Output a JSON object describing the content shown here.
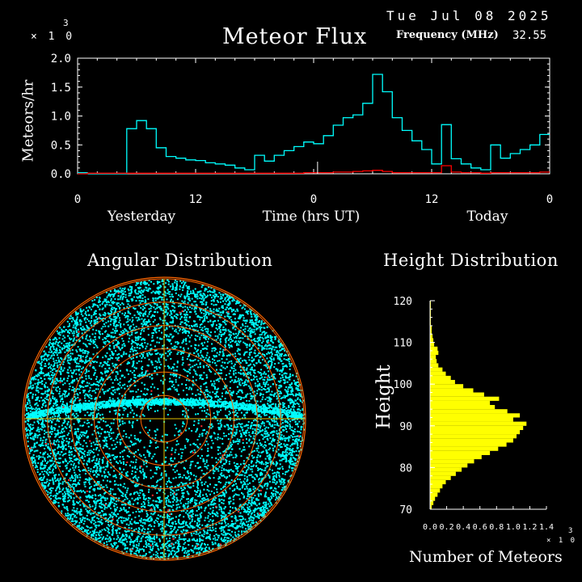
{
  "header": {
    "date": "Tue Jul 08 2025",
    "title": "Meteor Flux",
    "frequency_label": "Frequency (MHz)",
    "frequency_value": "32.55",
    "scale_prefix": "× 1 0",
    "scale_exponent": "3"
  },
  "colors": {
    "background": "#000000",
    "flux_line": "#00ffff",
    "flux_secondary": "#ff0000",
    "angular_points": "#00ffff",
    "angular_rings": "#ff6600",
    "angular_grid": "#e0c000",
    "height_bars": "#ffff00"
  },
  "chart_data": [
    {
      "type": "line",
      "title": "Meteor Flux",
      "ylabel": "Meteors/hr",
      "ylim": [
        0,
        2.0
      ],
      "y_scale_exponent": "3",
      "yticks": [
        "0.0",
        "0.5",
        "1.0",
        "1.5",
        "2.0"
      ],
      "xlim": [
        0,
        48
      ],
      "xticks": [
        "0",
        "12",
        "0",
        "12",
        "0"
      ],
      "xtick_positions": [
        0,
        12,
        24,
        36,
        48
      ],
      "period_labels": [
        "Yesterday",
        "Time (hrs UT)",
        "Today"
      ],
      "series": [
        {
          "style": "step",
          "x": [
            0,
            1,
            2,
            3,
            4,
            5,
            6,
            7,
            8,
            9,
            10,
            11,
            12,
            13,
            14,
            15,
            16,
            17,
            18,
            19,
            20,
            21,
            22,
            23,
            24,
            25,
            26,
            27,
            28,
            29,
            30,
            31,
            32,
            33,
            34,
            35,
            36,
            37,
            38,
            39,
            40,
            41,
            42,
            43,
            44,
            45,
            46,
            47
          ],
          "values": [
            0.02,
            0.0,
            0.0,
            0.0,
            0.0,
            0.78,
            0.92,
            0.78,
            0.45,
            0.3,
            0.27,
            0.24,
            0.23,
            0.19,
            0.17,
            0.15,
            0.1,
            0.07,
            0.32,
            0.22,
            0.32,
            0.4,
            0.47,
            0.55,
            0.52,
            0.66,
            0.84,
            0.97,
            1.02,
            1.22,
            1.72,
            1.42,
            0.97,
            0.75,
            0.57,
            0.42,
            0.17,
            0.85,
            0.26,
            0.17,
            0.1,
            0.07,
            0.5,
            0.27,
            0.35,
            0.42,
            0.5,
            0.68
          ]
        },
        {
          "style": "step",
          "x": [
            0,
            1,
            2,
            3,
            4,
            5,
            6,
            7,
            8,
            9,
            10,
            11,
            12,
            13,
            14,
            15,
            16,
            17,
            18,
            19,
            20,
            21,
            22,
            23,
            24,
            25,
            26,
            27,
            28,
            29,
            30,
            31,
            32,
            33,
            34,
            35,
            36,
            37,
            38,
            39,
            40,
            41,
            42,
            43,
            44,
            45,
            46,
            47
          ],
          "values": [
            0.0,
            0.01,
            0.01,
            0.01,
            0.01,
            0.01,
            0.01,
            0.01,
            0.01,
            0.01,
            0.01,
            0.01,
            0.01,
            0.01,
            0.01,
            0.01,
            0.01,
            0.01,
            0.01,
            0.01,
            0.01,
            0.01,
            0.01,
            0.02,
            0.02,
            0.02,
            0.03,
            0.03,
            0.04,
            0.05,
            0.06,
            0.04,
            0.02,
            0.02,
            0.02,
            0.02,
            0.02,
            0.14,
            0.03,
            0.02,
            0.02,
            0.01,
            0.02,
            0.02,
            0.02,
            0.02,
            0.02,
            0.03
          ]
        }
      ]
    },
    {
      "type": "scatter",
      "title": "Angular Distribution",
      "description_shape": "polar sky map",
      "ring_count": 6,
      "trail_declination_band": true
    },
    {
      "type": "bar",
      "orientation": "horizontal",
      "title": "Height Distribution",
      "ylabel": "Height",
      "xlabel": "Number of Meteors",
      "x_scale_prefix": "× 1 0",
      "x_scale_exponent": "3",
      "ylim": [
        70,
        120
      ],
      "yticks": [
        "70",
        "80",
        "90",
        "100",
        "110",
        "120"
      ],
      "xlim": [
        0,
        1.4
      ],
      "xticks": [
        "0.0",
        "0.2",
        "0.4",
        "0.6",
        "0.8",
        "1.0",
        "1.2",
        "1.4"
      ],
      "heights": [
        70,
        71,
        72,
        73,
        74,
        75,
        76,
        77,
        78,
        79,
        80,
        81,
        82,
        83,
        84,
        85,
        86,
        87,
        88,
        89,
        90,
        91,
        92,
        93,
        94,
        95,
        96,
        97,
        98,
        99,
        100,
        101,
        102,
        103,
        104,
        105,
        106,
        107,
        108,
        109,
        110,
        111,
        112,
        113,
        114,
        115,
        116,
        117,
        118,
        119
      ],
      "values": [
        0.02,
        0.04,
        0.06,
        0.09,
        0.12,
        0.15,
        0.19,
        0.25,
        0.31,
        0.38,
        0.45,
        0.53,
        0.62,
        0.72,
        0.82,
        0.92,
        1.0,
        1.04,
        1.08,
        1.12,
        1.16,
        1.0,
        1.08,
        0.93,
        0.78,
        0.72,
        0.83,
        0.65,
        0.52,
        0.4,
        0.3,
        0.25,
        0.19,
        0.15,
        0.1,
        0.08,
        0.07,
        0.1,
        0.09,
        0.05,
        0.04,
        0.03,
        0.02,
        0.02,
        0.01,
        0.01,
        0.01,
        0.01,
        0.01,
        0.01
      ]
    }
  ]
}
